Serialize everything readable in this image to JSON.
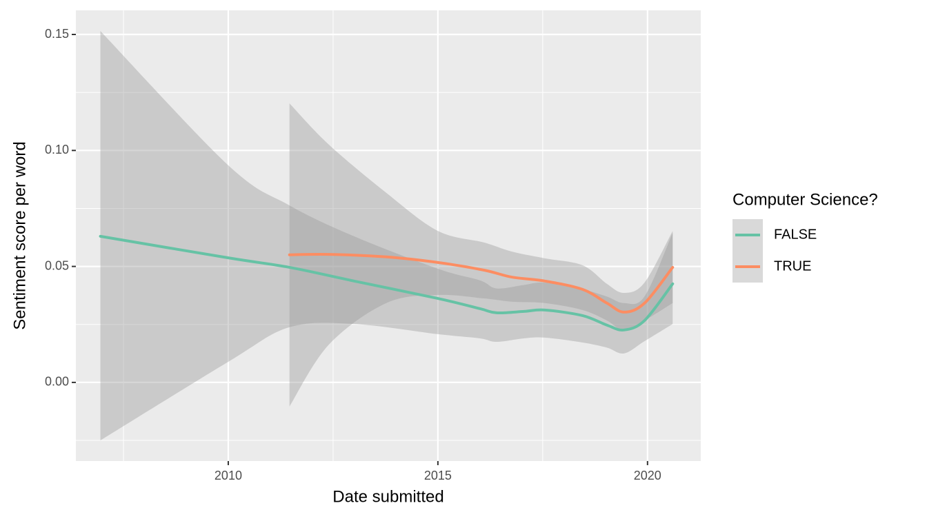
{
  "chart_data": {
    "type": "smooth-line",
    "x_label": "Date submitted",
    "y_label": "Sentiment score per word",
    "legend_title": "Computer Science?",
    "legend_position": "right",
    "grid": true,
    "xlim": [
      2006.365,
      2021.27
    ],
    "xticks": [
      2010,
      2015,
      2020
    ],
    "ylim": [
      -0.0339,
      0.1604
    ],
    "yticks": [
      {
        "value": 0,
        "label": "0.00"
      },
      {
        "value": 0.05,
        "label": "0.05"
      },
      {
        "value": 0.1,
        "label": "0.10"
      },
      {
        "value": 0.15,
        "label": "0.15"
      }
    ],
    "series": [
      {
        "name": "FALSE",
        "color": "#66c2a5",
        "x": [
          2006.95,
          2010,
          2011.46,
          2013,
          2015,
          2016,
          2016.4,
          2017.05,
          2017.55,
          2018.45,
          2019.03,
          2019.44,
          2019.93,
          2020.6
        ],
        "values": [
          0.063,
          0.0537,
          0.0496,
          0.0437,
          0.0362,
          0.0318,
          0.03,
          0.0306,
          0.0312,
          0.0288,
          0.0247,
          0.0226,
          0.0267,
          0.0425
        ],
        "upper": [
          0.1515,
          0.0936,
          0.0763,
          0.063,
          0.049,
          0.044,
          0.0405,
          0.042,
          0.043,
          0.0401,
          0.037,
          0.0342,
          0.0371,
          0.0645
        ],
        "lower": [
          -0.025,
          0.0089,
          0.0238,
          0.0252,
          0.0208,
          0.019,
          0.0175,
          0.019,
          0.0193,
          0.0172,
          0.015,
          0.0125,
          0.0178,
          0.0252
        ]
      },
      {
        "name": "TRUE",
        "color": "#fc8d62",
        "x": [
          2011.46,
          2012.4,
          2013.77,
          2015,
          2016.1,
          2016.76,
          2017.55,
          2018.45,
          2019.03,
          2019.44,
          2019.93,
          2020.6
        ],
        "values": [
          0.055,
          0.0552,
          0.0541,
          0.0517,
          0.0484,
          0.0454,
          0.0437,
          0.0401,
          0.0342,
          0.0303,
          0.0342,
          0.0496
        ],
        "upper": [
          0.1203,
          0.1025,
          0.0817,
          0.0653,
          0.0603,
          0.0564,
          0.0535,
          0.0505,
          0.0425,
          0.0386,
          0.0431,
          0.0653
        ],
        "lower": [
          -0.0104,
          0.0163,
          0.0342,
          0.0377,
          0.0362,
          0.0348,
          0.0342,
          0.0312,
          0.0267,
          0.0223,
          0.0267,
          0.0342
        ]
      }
    ]
  }
}
